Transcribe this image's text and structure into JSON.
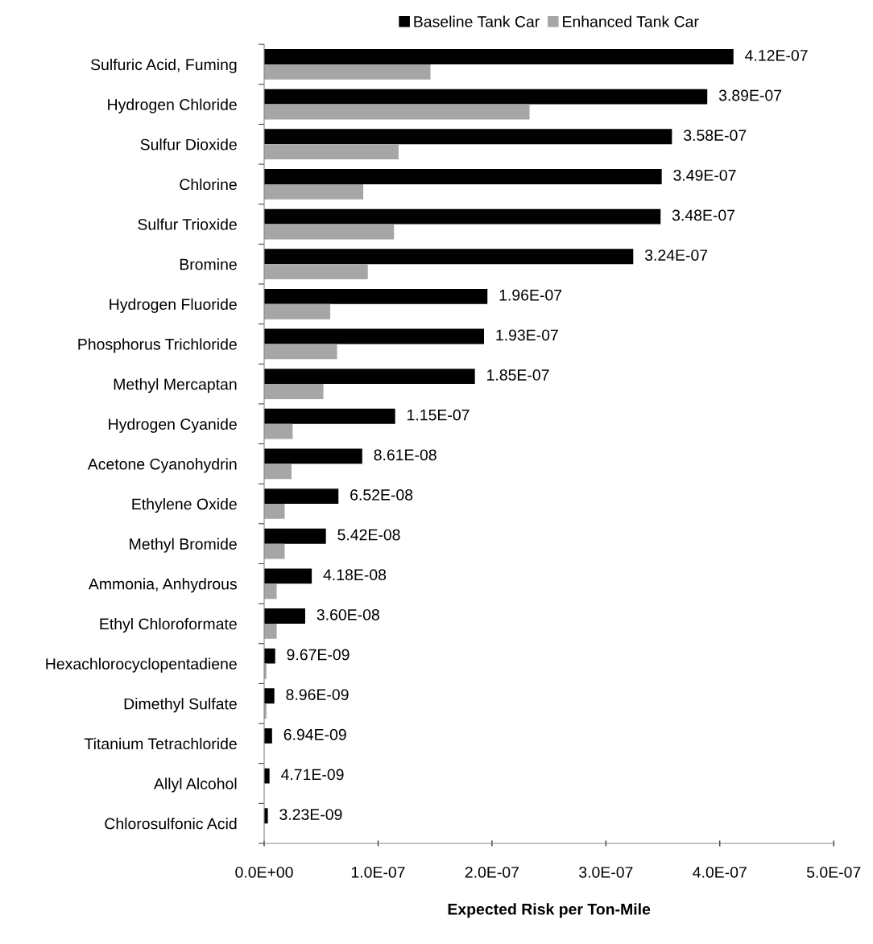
{
  "chart_data": {
    "type": "bar",
    "orientation": "horizontal",
    "xlabel": "Expected Risk per Ton-Mile",
    "categories": [
      "Sulfuric Acid, Fuming",
      "Hydrogen Chloride",
      "Sulfur Dioxide",
      "Chlorine",
      "Sulfur Trioxide",
      "Bromine",
      "Hydrogen Fluoride",
      "Phosphorus Trichloride",
      "Methyl Mercaptan",
      "Hydrogen Cyanide",
      "Acetone Cyanohydrin",
      "Ethylene Oxide",
      "Methyl Bromide",
      "Ammonia, Anhydrous",
      "Ethyl Chloroformate",
      "Hexachlorocyclopentadiene",
      "Dimethyl Sulfate",
      "Titanium Tetrachloride",
      "Allyl Alcohol",
      "Chlorosulfonic Acid"
    ],
    "series": [
      {
        "name": "Baseline Tank Car",
        "color": "#000000",
        "values": [
          4.12e-07,
          3.89e-07,
          3.58e-07,
          3.49e-07,
          3.48e-07,
          3.24e-07,
          1.96e-07,
          1.93e-07,
          1.85e-07,
          1.15e-07,
          8.61e-08,
          6.52e-08,
          5.42e-08,
          4.18e-08,
          3.6e-08,
          9.67e-09,
          8.96e-09,
          6.94e-09,
          4.71e-09,
          3.23e-09
        ],
        "value_labels": [
          "4.12E-07",
          "3.89E-07",
          "3.58E-07",
          "3.49E-07",
          "3.48E-07",
          "3.24E-07",
          "1.96E-07",
          "1.93E-07",
          "1.85E-07",
          "1.15E-07",
          "8.61E-08",
          "6.52E-08",
          "5.42E-08",
          "4.18E-08",
          "3.60E-08",
          "9.67E-09",
          "8.96E-09",
          "6.94E-09",
          "4.71E-09",
          "3.23E-09"
        ]
      },
      {
        "name": "Enhanced Tank Car",
        "color": "#a6a6a6",
        "values": [
          1.46e-07,
          2.33e-07,
          1.18e-07,
          8.7e-08,
          1.14e-07,
          9.1e-08,
          5.8e-08,
          6.4e-08,
          5.2e-08,
          2.5e-08,
          2.4e-08,
          1.8e-08,
          1.8e-08,
          1.1e-08,
          1.1e-08,
          2e-09,
          2e-09,
          null,
          null,
          null
        ]
      }
    ],
    "xlim": [
      0,
      5e-07
    ],
    "xticks": [
      {
        "value": 0,
        "label": "0.0E+00"
      },
      {
        "value": 1e-07,
        "label": "1.0E-07"
      },
      {
        "value": 2e-07,
        "label": "2.0E-07"
      },
      {
        "value": 3e-07,
        "label": "3.0E-07"
      },
      {
        "value": 4e-07,
        "label": "4.0E-07"
      },
      {
        "value": 5e-07,
        "label": "5.0E-07"
      }
    ],
    "grid": false,
    "legend": "top"
  }
}
